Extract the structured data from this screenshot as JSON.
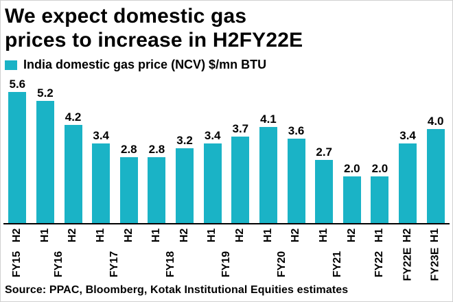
{
  "title_line1": "We expect domestic gas",
  "title_line2": "prices to increase in H2FY22E",
  "legend_label": "India domestic gas price (NCV) $/mn BTU",
  "source": "Source: PPAC, Bloomberg, Kotak Institutional Equities estimates",
  "colors": {
    "bar": "#1ab3c6",
    "text": "#000000",
    "axis": "#000000"
  },
  "chart_data": {
    "type": "bar",
    "title": "We expect domestic gas prices to increase in H2FY22E",
    "ylabel": "India domestic gas price (NCV) $/mn BTU",
    "xlabel": "",
    "ylim": [
      0,
      6
    ],
    "grid": false,
    "legend_position": "top-left",
    "bars": [
      {
        "half": "H2",
        "fy": "FY15",
        "value": 5.6
      },
      {
        "half": "H1",
        "fy": "FY16",
        "value": 5.2
      },
      {
        "half": "H2",
        "fy": "FY16",
        "value": 4.2
      },
      {
        "half": "H1",
        "fy": "FY17",
        "value": 3.4
      },
      {
        "half": "H2",
        "fy": "FY17",
        "value": 2.8
      },
      {
        "half": "H1",
        "fy": "FY18",
        "value": 2.8
      },
      {
        "half": "H2",
        "fy": "FY18",
        "value": 3.2
      },
      {
        "half": "H1",
        "fy": "FY19",
        "value": 3.4
      },
      {
        "half": "H2",
        "fy": "FY19",
        "value": 3.7
      },
      {
        "half": "H1",
        "fy": "FY20",
        "value": 4.1
      },
      {
        "half": "H2",
        "fy": "FY20",
        "value": 3.6
      },
      {
        "half": "H1",
        "fy": "FY21",
        "value": 2.7
      },
      {
        "half": "H2",
        "fy": "FY21",
        "value": 2.0
      },
      {
        "half": "H1",
        "fy": "FY22",
        "value": 2.0
      },
      {
        "half": "H2",
        "fy": "FY22E",
        "value": 3.4
      },
      {
        "half": "H1",
        "fy": "FY23E",
        "value": 4.0
      }
    ],
    "fy_groups": [
      {
        "label": "FY15",
        "start": 0,
        "end": 0
      },
      {
        "label": "FY16",
        "start": 1,
        "end": 2
      },
      {
        "label": "FY17",
        "start": 3,
        "end": 4
      },
      {
        "label": "FY18",
        "start": 5,
        "end": 6
      },
      {
        "label": "FY19",
        "start": 7,
        "end": 8
      },
      {
        "label": "FY20",
        "start": 9,
        "end": 10
      },
      {
        "label": "FY21",
        "start": 11,
        "end": 12
      },
      {
        "label": "FY22",
        "start": 13,
        "end": 13
      },
      {
        "label": "FY22E",
        "start": 14,
        "end": 14
      },
      {
        "label": "FY23E",
        "start": 15,
        "end": 15
      }
    ]
  }
}
